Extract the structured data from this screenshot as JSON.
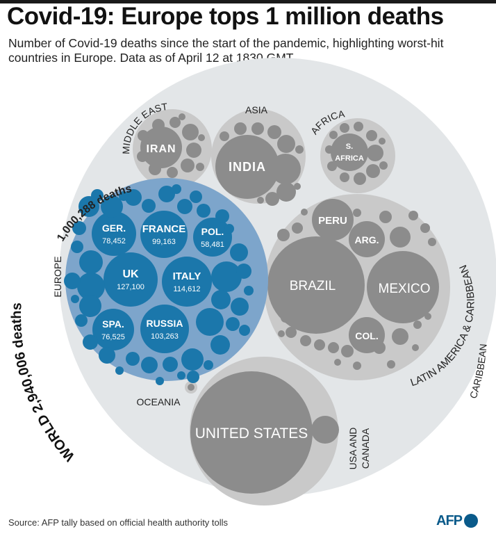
{
  "header": {
    "title": "Covid-19: Europe tops 1 million deaths",
    "subtitle": "Number of Covid-19 deaths since the start of the pandemic, highlighting worst-hit countries in Europe. Data as of April 12 at 1830 GMT"
  },
  "footer": {
    "source": "Source: AFP tally based on official health authority tolls",
    "logo_text": "AFP"
  },
  "colors": {
    "europe": "#1b77ab",
    "europe_group": "#7da5cb",
    "other": "#8c8c8c",
    "other_group": "#c9c9c9",
    "world": "#e3e6e8"
  },
  "chart_data": {
    "type": "packed-bubble",
    "world": {
      "label": "WORLD",
      "value_text": "2,940,006 deaths",
      "value": 2940006
    },
    "regions": [
      {
        "id": "europe",
        "name": "EUROPE",
        "value_text": "1,000,288 deaths",
        "value": 1000288,
        "countries": [
          {
            "id": "uk",
            "name": "UK",
            "value_text": "127,100",
            "value": 127100
          },
          {
            "id": "italy",
            "name": "Italy",
            "value_text": "114,612",
            "value": 114612
          },
          {
            "id": "russia",
            "name": "Russia",
            "value_text": "103,263",
            "value": 103263
          },
          {
            "id": "france",
            "name": "France",
            "value_text": "99,163",
            "value": 99163
          },
          {
            "id": "germany",
            "name": "Ger.",
            "value_text": "78,452",
            "value": 78452
          },
          {
            "id": "spain",
            "name": "Spa.",
            "value_text": "76,525",
            "value": 76525
          },
          {
            "id": "poland",
            "name": "Pol.",
            "value_text": "58,481",
            "value": 58481
          }
        ]
      },
      {
        "id": "latam",
        "name": "LATIN AMERICA & CARIBBEAN",
        "countries": [
          {
            "id": "brazil",
            "name": "Brazil"
          },
          {
            "id": "mexico",
            "name": "Mexico"
          },
          {
            "id": "peru",
            "name": "Peru"
          },
          {
            "id": "argentina",
            "name": "Arg."
          },
          {
            "id": "colombia",
            "name": "Col."
          }
        ]
      },
      {
        "id": "usa_canada",
        "name": "USA AND CANADA",
        "countries": [
          {
            "id": "us",
            "name": "United States"
          }
        ]
      },
      {
        "id": "asia",
        "name": "ASIA",
        "countries": [
          {
            "id": "india",
            "name": "India"
          }
        ]
      },
      {
        "id": "middle_east",
        "name": "MIDDLE EAST",
        "countries": [
          {
            "id": "iran",
            "name": "Iran"
          }
        ]
      },
      {
        "id": "africa",
        "name": "AFRICA",
        "countries": [
          {
            "id": "south_africa",
            "name": "S. Africa"
          }
        ]
      },
      {
        "id": "oceania",
        "name": "OCEANIA",
        "countries": []
      },
      {
        "id": "caribbean",
        "name": "CARIBBEAN",
        "countries": []
      }
    ]
  }
}
